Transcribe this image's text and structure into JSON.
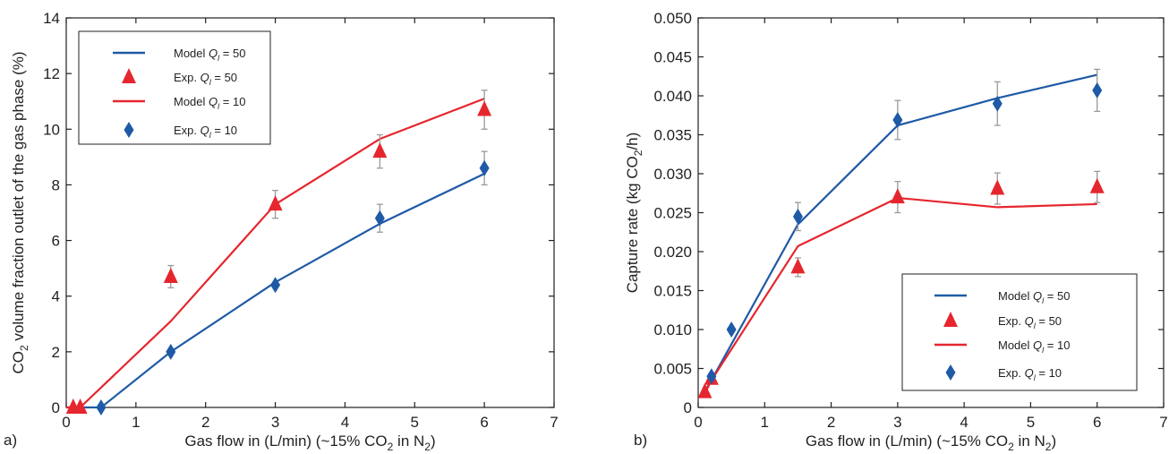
{
  "colors": {
    "blue": "#1f5aa6",
    "red": "#e6262e",
    "err": "#9a9a9a",
    "axis": "#231f20"
  },
  "chart_data": [
    {
      "panel_label": "a)",
      "type": "line",
      "xlabel": {
        "pre": "Gas flow in (L/min) (~15% CO",
        "sub1": "2",
        "mid": " in N",
        "sub2": "2",
        "post": ")"
      },
      "ylabel": {
        "pre": "CO",
        "sub": "2",
        "post": " volume fraction outlet of the gas phase (%)"
      },
      "xlim": [
        0,
        7
      ],
      "ylim": [
        0,
        14
      ],
      "xticks": [
        "0",
        "1",
        "2",
        "3",
        "4",
        "5",
        "6",
        "7"
      ],
      "yticks": [
        "0",
        "2",
        "4",
        "6",
        "8",
        "10",
        "12",
        "14"
      ],
      "grid": false,
      "legend_position": "top-left",
      "series": [
        {
          "name": "Model Q_l = 50",
          "label_pre": "Model ",
          "label_var": "Q",
          "label_sub": "l",
          "label_post": " = 50",
          "kind": "line",
          "color": "blue",
          "x": [
            0,
            0.5,
            1.5,
            3,
            4.5,
            6
          ],
          "y": [
            0,
            0,
            2.0,
            4.5,
            6.6,
            8.4
          ]
        },
        {
          "name": "Exp. Q_l = 50",
          "label_pre": "Exp. ",
          "label_var": "Q",
          "label_sub": "l",
          "label_post": " = 50",
          "kind": "marker",
          "marker": "triangle",
          "color": "red",
          "x": [
            0.1,
            0.2,
            1.5,
            3,
            4.5,
            6
          ],
          "y": [
            0,
            0,
            4.7,
            7.3,
            9.2,
            10.7
          ],
          "err": [
            0,
            0,
            0.4,
            0.5,
            0.6,
            0.7
          ]
        },
        {
          "name": "Model Q_l = 10",
          "label_pre": "Model ",
          "label_var": "Q",
          "label_sub": "l",
          "label_post": " = 10",
          "kind": "line",
          "color": "red",
          "x": [
            0,
            0.2,
            1.5,
            3,
            4.5,
            6
          ],
          "y": [
            0,
            0,
            3.1,
            7.3,
            9.65,
            11.1
          ]
        },
        {
          "name": "Exp. Q_l = 10",
          "label_pre": "Exp. ",
          "label_var": "Q",
          "label_sub": "l",
          "label_post": " = 10",
          "kind": "marker",
          "marker": "diamond",
          "color": "blue",
          "x": [
            0.5,
            1.5,
            3,
            4.5,
            6
          ],
          "y": [
            0,
            2.0,
            4.4,
            6.8,
            8.6
          ],
          "err": [
            0,
            0,
            0,
            0.5,
            0.6
          ]
        }
      ]
    },
    {
      "panel_label": "b)",
      "type": "line",
      "xlabel": {
        "pre": "Gas flow in (L/min) (~15% CO",
        "sub1": "2",
        "mid": " in N",
        "sub2": "2",
        "post": ")"
      },
      "ylabel": {
        "pre": "Capture rate (kg CO",
        "sub": "2",
        "post": "/h)"
      },
      "xlim": [
        0,
        7
      ],
      "ylim": [
        0,
        0.05
      ],
      "xticks": [
        "0",
        "1",
        "2",
        "3",
        "4",
        "5",
        "6",
        "7"
      ],
      "yticks": [
        "0",
        "0.005",
        "0.010",
        "0.015",
        "0.020",
        "0.025",
        "0.030",
        "0.035",
        "0.040",
        "0.045",
        "0.050"
      ],
      "grid": false,
      "legend_position": "bottom-right",
      "series": [
        {
          "name": "Model Q_l = 50",
          "label_pre": "Model ",
          "label_var": "Q",
          "label_sub": "l",
          "label_post": " = 50",
          "kind": "line",
          "color": "blue",
          "x": [
            0.1,
            0.2,
            1.5,
            3,
            4.5,
            6
          ],
          "y": [
            0.002,
            0.0035,
            0.0235,
            0.0362,
            0.0397,
            0.0427
          ]
        },
        {
          "name": "Exp. Q_l = 50",
          "label_pre": "Exp. ",
          "label_var": "Q",
          "label_sub": "l",
          "label_post": " = 50",
          "kind": "marker",
          "marker": "triangle",
          "color": "red",
          "x": [
            0.1,
            0.2,
            1.5,
            3,
            4.5,
            6
          ],
          "y": [
            0.002,
            0.0037,
            0.018,
            0.027,
            0.0281,
            0.0283
          ],
          "err": [
            0,
            0,
            0.0012,
            0.002,
            0.002,
            0.002
          ]
        },
        {
          "name": "Model Q_l = 10",
          "label_pre": "Model ",
          "label_var": "Q",
          "label_sub": "l",
          "label_post": " = 10",
          "kind": "line",
          "color": "red",
          "x": [
            0.1,
            0.2,
            1.5,
            3,
            4.5,
            6
          ],
          "y": [
            0.0018,
            0.0035,
            0.0207,
            0.0269,
            0.0257,
            0.0261
          ]
        },
        {
          "name": "Exp. Q_l = 10",
          "label_pre": "Exp. ",
          "label_var": "Q",
          "label_sub": "l",
          "label_post": " = 10",
          "kind": "marker",
          "marker": "diamond",
          "color": "blue",
          "x": [
            0.2,
            0.5,
            1.5,
            3,
            4.5,
            6
          ],
          "y": [
            0.004,
            0.01,
            0.0245,
            0.0369,
            0.039,
            0.0407
          ],
          "err": [
            0,
            0,
            0.0018,
            0.0025,
            0.0028,
            0.0027
          ]
        }
      ]
    }
  ]
}
